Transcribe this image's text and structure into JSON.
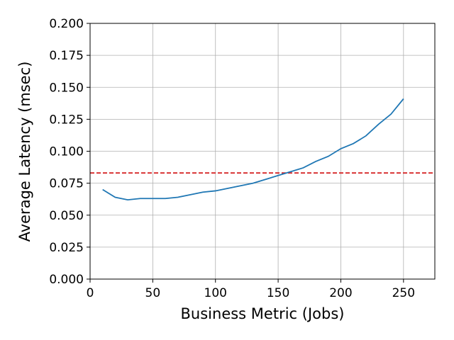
{
  "chart_data": {
    "type": "line",
    "x_label": "Business Metric (Jobs)",
    "y_label": "Average Latency (msec)",
    "x": [
      10,
      20,
      30,
      40,
      50,
      60,
      70,
      80,
      90,
      100,
      110,
      120,
      130,
      140,
      150,
      160,
      170,
      180,
      190,
      200,
      210,
      220,
      230,
      240,
      250
    ],
    "series": [
      {
        "color": "#1f77b4",
        "values": [
          0.07,
          0.064,
          0.062,
          0.063,
          0.063,
          0.063,
          0.064,
          0.066,
          0.068,
          0.069,
          0.071,
          0.073,
          0.075,
          0.078,
          0.081,
          0.084,
          0.087,
          0.092,
          0.096,
          0.102,
          0.106,
          0.112,
          0.121,
          0.129,
          0.141
        ]
      }
    ],
    "hline": {
      "value": 0.083,
      "color": "#d62728",
      "style": "dashed"
    },
    "xlim": [
      0,
      275
    ],
    "xticks": [
      0,
      50,
      100,
      150,
      200,
      250
    ],
    "ylim": [
      0,
      0.2
    ],
    "yticks": [
      {
        "value": 0,
        "label": "0.000"
      },
      {
        "value": 0.025,
        "label": "0.025"
      },
      {
        "value": 0.05,
        "label": "0.050"
      },
      {
        "value": 0.075,
        "label": "0.075"
      },
      {
        "value": 0.1,
        "label": "0.100"
      },
      {
        "value": 0.125,
        "label": "0.125"
      },
      {
        "value": 0.15,
        "label": "0.150"
      },
      {
        "value": 0.175,
        "label": "0.175"
      },
      {
        "value": 0.2,
        "label": "0.200"
      }
    ],
    "grid": true
  }
}
